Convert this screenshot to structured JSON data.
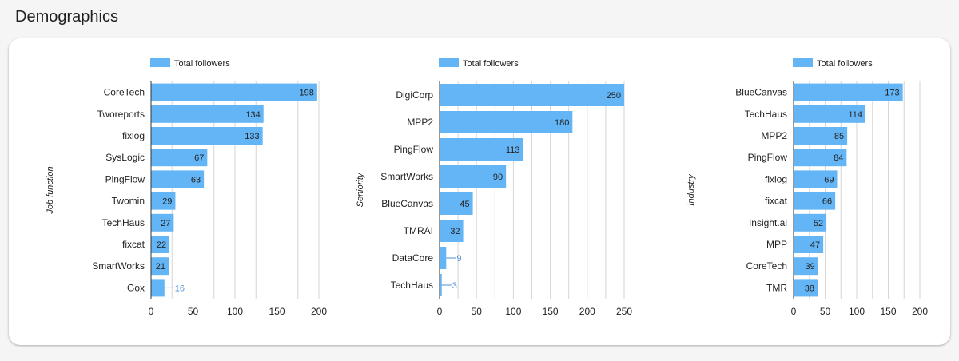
{
  "page": {
    "title": "Demographics"
  },
  "colors": {
    "bar": "#64b5f6",
    "outside_label": "#4a90d9",
    "grid": "#d6d6d6",
    "axis": "#333333"
  },
  "chart_data": [
    {
      "type": "bar",
      "orientation": "horizontal",
      "ylabel": "Job function",
      "legend": "Total followers",
      "legend_position": "top",
      "categories": [
        "CoreTech",
        "Tworeports",
        "fixlog",
        "SysLogic",
        "PingFlow",
        "Twomin",
        "TechHaus",
        "fixcat",
        "SmartWorks",
        "Gox"
      ],
      "values": [
        198,
        134,
        133,
        67,
        63,
        29,
        27,
        22,
        21,
        16
      ],
      "xlim": [
        0,
        200
      ],
      "xticks": [
        0,
        50,
        100,
        150,
        200
      ],
      "grid": true
    },
    {
      "type": "bar",
      "orientation": "horizontal",
      "ylabel": "Seniority",
      "legend": "Total followers",
      "legend_position": "top",
      "categories": [
        "DigiCorp",
        "MPP2",
        "PingFlow",
        "SmartWorks",
        "BlueCanvas",
        "TMRAI",
        "DataCore",
        "TechHaus"
      ],
      "values": [
        250,
        180,
        113,
        90,
        45,
        32,
        9,
        3
      ],
      "xlim": [
        0,
        250
      ],
      "xticks": [
        0,
        50,
        100,
        150,
        200,
        250
      ],
      "grid": true
    },
    {
      "type": "bar",
      "orientation": "horizontal",
      "ylabel": "Industry",
      "legend": "Total followers",
      "legend_position": "top",
      "categories": [
        "BlueCanvas",
        "TechHaus",
        "MPP2",
        "PingFlow",
        "fixlog",
        "fixcat",
        "Insight.ai",
        "MPP",
        "CoreTech",
        "TMR"
      ],
      "values": [
        173,
        114,
        85,
        84,
        69,
        66,
        52,
        47,
        39,
        38
      ],
      "xlim": [
        0,
        200
      ],
      "xticks": [
        0,
        50,
        100,
        150,
        200
      ],
      "grid": true
    }
  ]
}
